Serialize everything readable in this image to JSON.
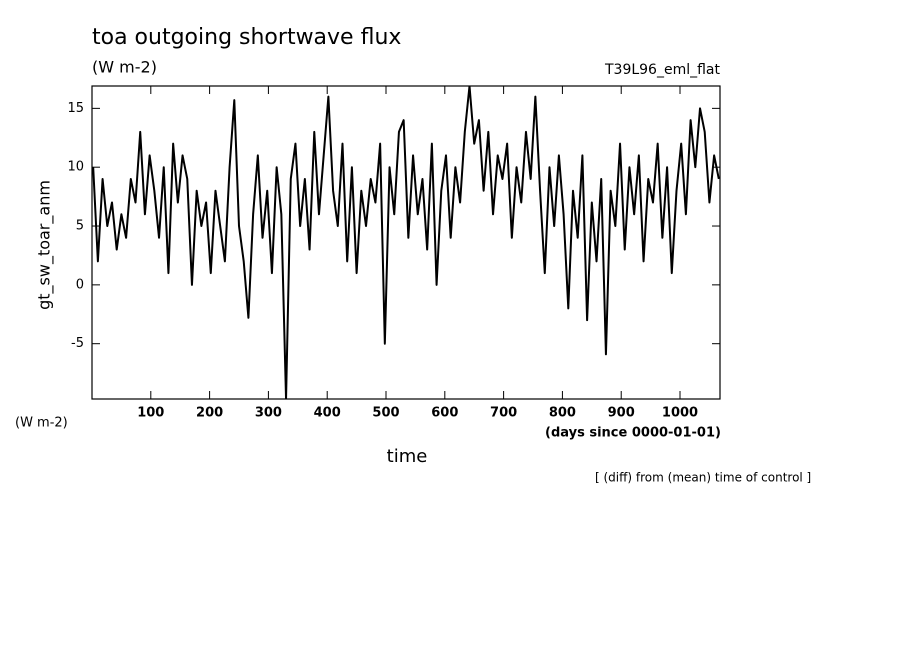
{
  "chart_data": {
    "type": "line",
    "title": "toa outgoing shortwave flux",
    "subtitle": "(W m-2)",
    "annotation": "T39L96_eml_flat",
    "ylabel": "gt_sw_toar_anm",
    "yunit": "(W m-2)",
    "xlabel": "time",
    "xunit": "(days since 0000-01-01)",
    "note": "[ (diff) from (mean) time of control ]",
    "xlim": [
      0,
      1068
    ],
    "ylim": [
      -9.7,
      16.9
    ],
    "xticks": [
      100,
      200,
      300,
      400,
      500,
      600,
      700,
      800,
      900,
      1000
    ],
    "yticks": [
      -5,
      0,
      5,
      10,
      15
    ],
    "series": [
      {
        "name": "gt_sw_toar_anm",
        "color": "#000000",
        "x": [
          2,
          10,
          18,
          26,
          34,
          42,
          50,
          58,
          66,
          74,
          82,
          90,
          98,
          106,
          114,
          122,
          130,
          138,
          146,
          154,
          162,
          170,
          178,
          186,
          194,
          202,
          210,
          218,
          226,
          234,
          242,
          250,
          258,
          266,
          274,
          282,
          290,
          298,
          306,
          314,
          322,
          330,
          338,
          346,
          354,
          362,
          370,
          378,
          386,
          394,
          402,
          410,
          418,
          426,
          434,
          442,
          450,
          458,
          466,
          474,
          482,
          490,
          498,
          506,
          514,
          522,
          530,
          538,
          546,
          554,
          562,
          570,
          578,
          586,
          594,
          602,
          610,
          618,
          626,
          634,
          642,
          650,
          658,
          666,
          674,
          682,
          690,
          698,
          706,
          714,
          722,
          730,
          738,
          746,
          754,
          762,
          770,
          778,
          786,
          794,
          802,
          810,
          818,
          826,
          834,
          842,
          850,
          858,
          866,
          874,
          882,
          890,
          898,
          906,
          914,
          922,
          930,
          938,
          946,
          954,
          962,
          970,
          978,
          986,
          994,
          1002,
          1010,
          1018,
          1026,
          1034,
          1042,
          1050,
          1058,
          1066
        ],
        "values": [
          10,
          2,
          9,
          5,
          7,
          3,
          6,
          4,
          9,
          7,
          13,
          6,
          11,
          8,
          4,
          10,
          1,
          12,
          7,
          11,
          9,
          0,
          8,
          5,
          7,
          1,
          8,
          5,
          2,
          10,
          15.7,
          5,
          2,
          -2.8,
          6,
          11,
          4,
          8,
          1,
          10,
          6,
          -9.7,
          9,
          12,
          5,
          9,
          3,
          13,
          6,
          11,
          16,
          8,
          5,
          12,
          2,
          10,
          1,
          8,
          5,
          9,
          7,
          12,
          -5,
          10,
          6,
          13,
          14,
          4,
          11,
          6,
          9,
          3,
          12,
          0,
          8,
          11,
          4,
          10,
          7,
          13,
          16.9,
          12,
          14,
          8,
          13,
          6,
          11,
          9,
          12,
          4,
          10,
          7,
          13,
          9,
          16,
          8,
          1,
          10,
          5,
          11,
          6,
          -2,
          8,
          4,
          11,
          -3,
          7,
          2,
          9,
          -5.9,
          8,
          5,
          12,
          3,
          10,
          6,
          11,
          2,
          9,
          7,
          12,
          4,
          10,
          1,
          8,
          12,
          6,
          14,
          10,
          15,
          13,
          7,
          11,
          9
        ]
      }
    ]
  }
}
